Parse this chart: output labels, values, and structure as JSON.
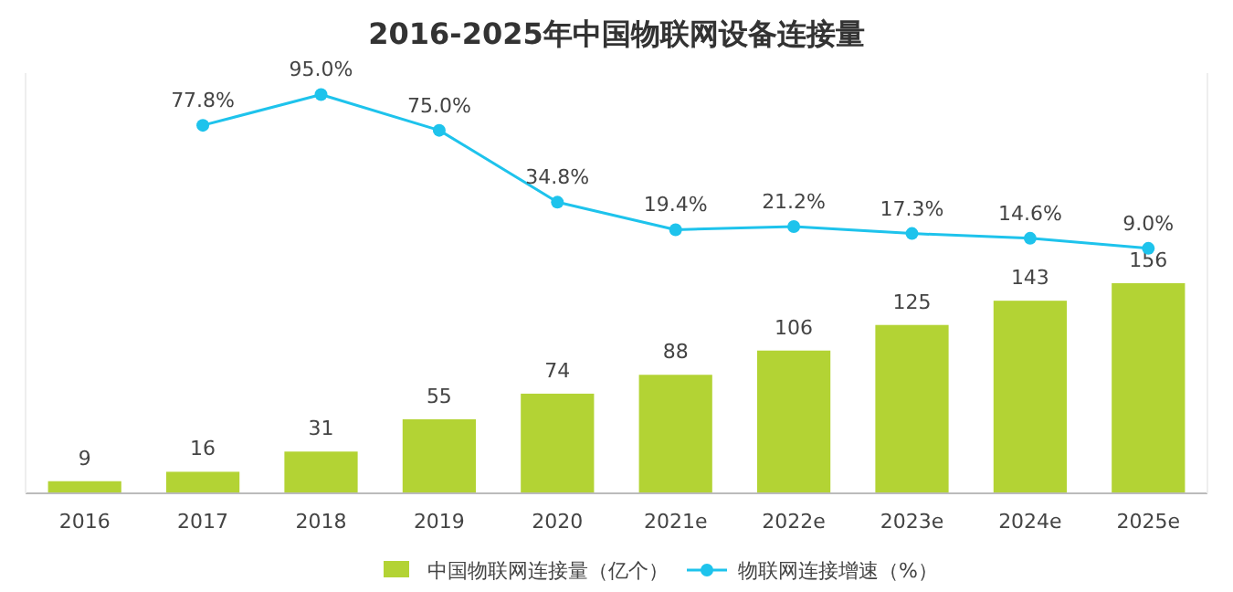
{
  "chart_data": {
    "type": "bar",
    "title": "2016-2025年中国物联网设备连接量",
    "categories": [
      "2016",
      "2017",
      "2018",
      "2019",
      "2020",
      "2021e",
      "2022e",
      "2023e",
      "2024e",
      "2025e"
    ],
    "series": [
      {
        "name": "中国物联网连接量（亿个）",
        "color": "#b3d334",
        "values": [
          9,
          16,
          31,
          55,
          74,
          88,
          106,
          125,
          143,
          156
        ]
      },
      {
        "name": "物联网连接增速（%）",
        "type": "line",
        "axis": "y2",
        "color": "#1ec3ec",
        "marker": "circle",
        "values": [
          null,
          77.8,
          95.0,
          75.0,
          34.8,
          19.4,
          21.2,
          17.3,
          14.6,
          9.0
        ],
        "value_labels": [
          null,
          "77.8%",
          "95.0%",
          "75.0%",
          "34.8%",
          "19.4%",
          "21.2%",
          "17.3%",
          "14.6%",
          "9.0%"
        ]
      }
    ],
    "ylim": [
      0,
      312
    ],
    "y2lim": [
      -128,
      107
    ],
    "tick_labels": "x",
    "data_labels": true,
    "legend": "bottom"
  }
}
